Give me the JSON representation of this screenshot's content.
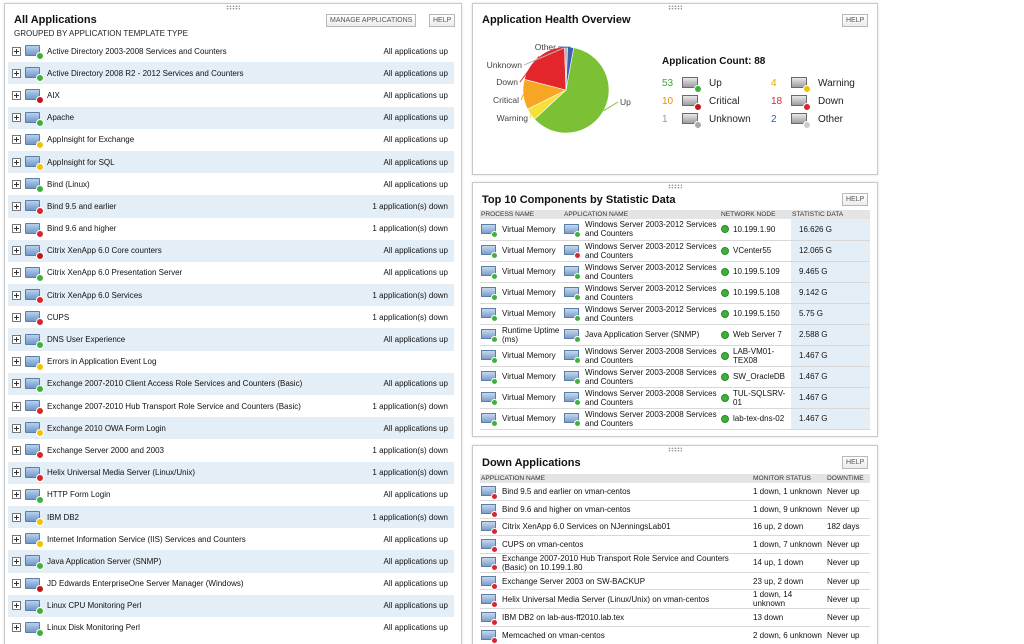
{
  "all_apps": {
    "title": "All Applications",
    "subtitle": "GROUPED BY APPLICATION TEMPLATE TYPE",
    "manage_label": "MANAGE APPLICATIONS",
    "help_label": "HELP",
    "rows": [
      {
        "name": "Active Directory 2003-2008 Services and Counters",
        "status": "All applications up",
        "icon": "up"
      },
      {
        "name": "Active Directory 2008 R2 - 2012 Services and Counters",
        "status": "All applications up",
        "icon": "up"
      },
      {
        "name": "AIX",
        "status": "All applications up",
        "icon": "crit"
      },
      {
        "name": "Apache",
        "status": "All applications up",
        "icon": "up"
      },
      {
        "name": "AppInsight for Exchange",
        "status": "All applications up",
        "icon": "warn"
      },
      {
        "name": "AppInsight for SQL",
        "status": "All applications up",
        "icon": "warn"
      },
      {
        "name": "Bind (Linux)",
        "status": "All applications up",
        "icon": "up"
      },
      {
        "name": "Bind 9.5 and earlier",
        "status": "1 application(s) down",
        "icon": "down"
      },
      {
        "name": "Bind 9.6 and higher",
        "status": "1 application(s) down",
        "icon": "down"
      },
      {
        "name": "Citrix XenApp 6.0 Core counters",
        "status": "All applications up",
        "icon": "crit"
      },
      {
        "name": "Citrix XenApp 6.0 Presentation Server",
        "status": "All applications up",
        "icon": "up"
      },
      {
        "name": "Citrix XenApp 6.0 Services",
        "status": "1 application(s) down",
        "icon": "down"
      },
      {
        "name": "CUPS",
        "status": "1 application(s) down",
        "icon": "down"
      },
      {
        "name": "DNS User Experience",
        "status": "All applications up",
        "icon": "up"
      },
      {
        "name": "Errors in Application Event Log",
        "status": "",
        "icon": "warn"
      },
      {
        "name": "Exchange 2007-2010 Client Access Role Services and Counters (Basic)",
        "status": "All applications up",
        "icon": "up"
      },
      {
        "name": "Exchange 2007-2010 Hub Transport Role Service and Counters (Basic)",
        "status": "1 application(s) down",
        "icon": "down"
      },
      {
        "name": "Exchange 2010 OWA Form Login",
        "status": "All applications up",
        "icon": "warn"
      },
      {
        "name": "Exchange Server 2000 and 2003",
        "status": "1 application(s) down",
        "icon": "down"
      },
      {
        "name": "Helix Universal Media Server (Linux/Unix)",
        "status": "1 application(s) down",
        "icon": "down"
      },
      {
        "name": "HTTP Form Login",
        "status": "All applications up",
        "icon": "up"
      },
      {
        "name": "IBM DB2",
        "status": "1 application(s) down",
        "icon": "warn"
      },
      {
        "name": "Internet Information Service (IIS) Services and Counters",
        "status": "All applications up",
        "icon": "warn"
      },
      {
        "name": "Java Application Server (SNMP)",
        "status": "All applications up",
        "icon": "up"
      },
      {
        "name": "JD Edwards EnterpriseOne Server Manager (Windows)",
        "status": "All applications up",
        "icon": "crit"
      },
      {
        "name": "Linux CPU Monitoring Perl",
        "status": "All applications up",
        "icon": "up"
      },
      {
        "name": "Linux Disk Monitoring Perl",
        "status": "All applications up",
        "icon": "up"
      }
    ]
  },
  "health": {
    "title": "Application Health Overview",
    "help_label": "HELP",
    "count_label": "Application Count: 88",
    "pie_labels": {
      "other": "Other",
      "unknown": "Unknown",
      "down": "Down",
      "critical": "Critical",
      "warning": "Warning",
      "up": "Up"
    },
    "legend": [
      {
        "num": "53",
        "label": "Up",
        "icon": "up",
        "num_color": "#3fa53a"
      },
      {
        "num": "4",
        "label": "Warning",
        "icon": "warn",
        "num_color": "#e0a800"
      },
      {
        "num": "10",
        "label": "Critical",
        "icon": "crit",
        "num_color": "#f08a00"
      },
      {
        "num": "18",
        "label": "Down",
        "icon": "down",
        "num_color": "#d9262b"
      },
      {
        "num": "1",
        "label": "Unknown",
        "icon": "unk",
        "num_color": "#999999"
      },
      {
        "num": "2",
        "label": "Other",
        "icon": "oth",
        "num_color": "#2a5fb0"
      }
    ],
    "colors": {
      "up": "#7cc135",
      "warning": "#f5e03a",
      "critical": "#f6a623",
      "down": "#e3262b",
      "unknown": "#b7b7b7",
      "other": "#3c5fb5"
    }
  },
  "chart_data": {
    "type": "pie",
    "title": "Application Health Overview",
    "categories": [
      "Up",
      "Warning",
      "Critical",
      "Down",
      "Unknown",
      "Other"
    ],
    "values": [
      53,
      4,
      10,
      18,
      1,
      2
    ]
  },
  "top10": {
    "title": "Top 10 Components by Statistic Data",
    "help_label": "HELP",
    "headers": [
      "PROCESS NAME",
      "APPLICATION NAME",
      "NETWORK NODE",
      "STATISTIC DATA"
    ],
    "rows": [
      {
        "process": "Virtual Memory",
        "app": "Windows Server 2003-2012 Services and Counters",
        "app_icon": "up",
        "node": "10.199.1.90",
        "stat": "16.626 G"
      },
      {
        "process": "Virtual Memory",
        "app": "Windows Server 2003-2012 Services and Counters",
        "app_icon": "down",
        "node": "VCenter55",
        "stat": "12.065 G"
      },
      {
        "process": "Virtual Memory",
        "app": "Windows Server 2003-2012 Services and Counters",
        "app_icon": "up",
        "node": "10.199.5.109",
        "stat": "9.465 G"
      },
      {
        "process": "Virtual Memory",
        "app": "Windows Server 2003-2012 Services and Counters",
        "app_icon": "up",
        "node": "10.199.5.108",
        "stat": "9.142 G"
      },
      {
        "process": "Virtual Memory",
        "app": "Windows Server 2003-2012 Services and Counters",
        "app_icon": "up",
        "node": "10.199.5.150",
        "stat": "5.75 G"
      },
      {
        "process": "Runtime Uptime (ms)",
        "app": "Java Application Server (SNMP)",
        "app_icon": "up",
        "node": "Web Server 7",
        "stat": "2.588 G"
      },
      {
        "process": "Virtual Memory",
        "app": "Windows Server 2003-2008 Services and Counters",
        "app_icon": "up",
        "node": "LAB-VM01-TEX08",
        "stat": "1.467 G"
      },
      {
        "process": "Virtual Memory",
        "app": "Windows Server 2003-2008 Services and Counters",
        "app_icon": "up",
        "node": "SW_OracleDB",
        "stat": "1.467 G"
      },
      {
        "process": "Virtual Memory",
        "app": "Windows Server 2003-2008 Services and Counters",
        "app_icon": "up",
        "node": "TUL-SQLSRV-01",
        "stat": "1.467 G"
      },
      {
        "process": "Virtual Memory",
        "app": "Windows Server 2003-2008 Services and Counters",
        "app_icon": "up",
        "node": "lab-tex-dns-02",
        "stat": "1.467 G"
      }
    ]
  },
  "down_apps": {
    "title": "Down Applications",
    "help_label": "HELP",
    "headers": [
      "APPLICATION NAME",
      "MONITOR STATUS",
      "DOWNTIME"
    ],
    "rows": [
      {
        "app": "Bind 9.5 and earlier on vman-centos",
        "status": "1 down, 1 unknown",
        "downtime": "Never up"
      },
      {
        "app": "Bind 9.6 and higher on vman-centos",
        "status": "1 down, 9 unknown",
        "downtime": "Never up"
      },
      {
        "app": "Citrix XenApp 6.0 Services on NJenningsLab01",
        "status": "16 up, 2 down",
        "downtime": "182 days"
      },
      {
        "app": "CUPS on vman-centos",
        "status": "1 down, 7 unknown",
        "downtime": "Never up"
      },
      {
        "app": "Exchange 2007-2010 Hub Transport Role Service and Counters (Basic) on 10.199.1.80",
        "status": "14 up, 1 down",
        "downtime": "Never up"
      },
      {
        "app": "Exchange Server 2003 on SW-BACKUP",
        "status": "23 up, 2 down",
        "downtime": "Never up"
      },
      {
        "app": "Helix Universal Media Server (Linux/Unix) on vman-centos",
        "status": "1 down, 14 unknown",
        "downtime": "Never up"
      },
      {
        "app": "IBM DB2 on lab-aus-ff2010.lab.tex",
        "status": "13 down",
        "downtime": "Never up"
      },
      {
        "app": "Memcached on vman-centos",
        "status": "2 down, 6 unknown",
        "downtime": "Never up"
      }
    ]
  }
}
